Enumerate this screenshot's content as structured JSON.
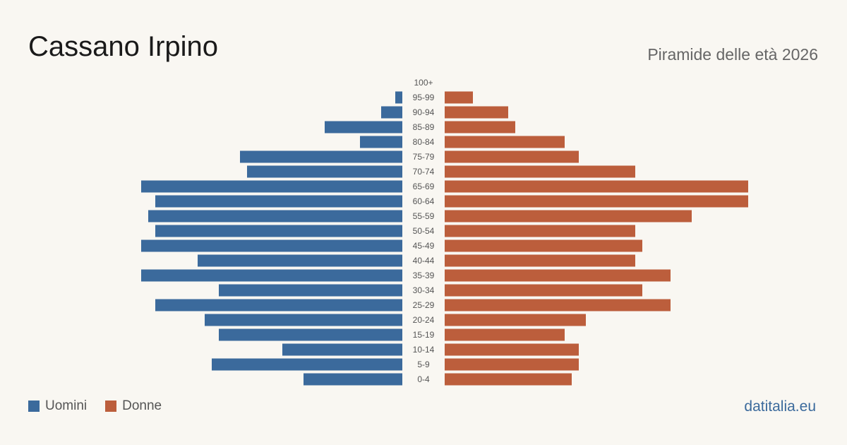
{
  "header": {
    "title": "Cassano Irpino",
    "subtitle": "Piramide delle età 2026"
  },
  "legend": {
    "men_label": "Uomini",
    "women_label": "Donne"
  },
  "source": "datitalia.eu",
  "colors": {
    "men": "#3b6a9c",
    "women": "#bc5e3c",
    "background": "#f9f7f2"
  },
  "chart_data": {
    "type": "bar",
    "orientation": "horizontal-pyramid",
    "categories": [
      "100+",
      "95-99",
      "90-94",
      "85-89",
      "80-84",
      "75-79",
      "70-74",
      "65-69",
      "60-64",
      "55-59",
      "50-54",
      "45-49",
      "40-44",
      "35-39",
      "30-34",
      "25-29",
      "20-24",
      "15-19",
      "10-14",
      "5-9",
      "0-4"
    ],
    "series": [
      {
        "name": "Uomini",
        "values": [
          0,
          1,
          3,
          11,
          6,
          23,
          22,
          37,
          35,
          36,
          35,
          37,
          29,
          37,
          26,
          35,
          28,
          26,
          17,
          27,
          14
        ]
      },
      {
        "name": "Donne",
        "values": [
          0,
          4,
          9,
          10,
          17,
          19,
          27,
          43,
          43,
          35,
          27,
          28,
          27,
          32,
          28,
          32,
          20,
          17,
          19,
          19,
          18
        ]
      }
    ],
    "xlim": [
      0,
      43
    ],
    "grid": false,
    "legend_position": "bottom-left"
  }
}
